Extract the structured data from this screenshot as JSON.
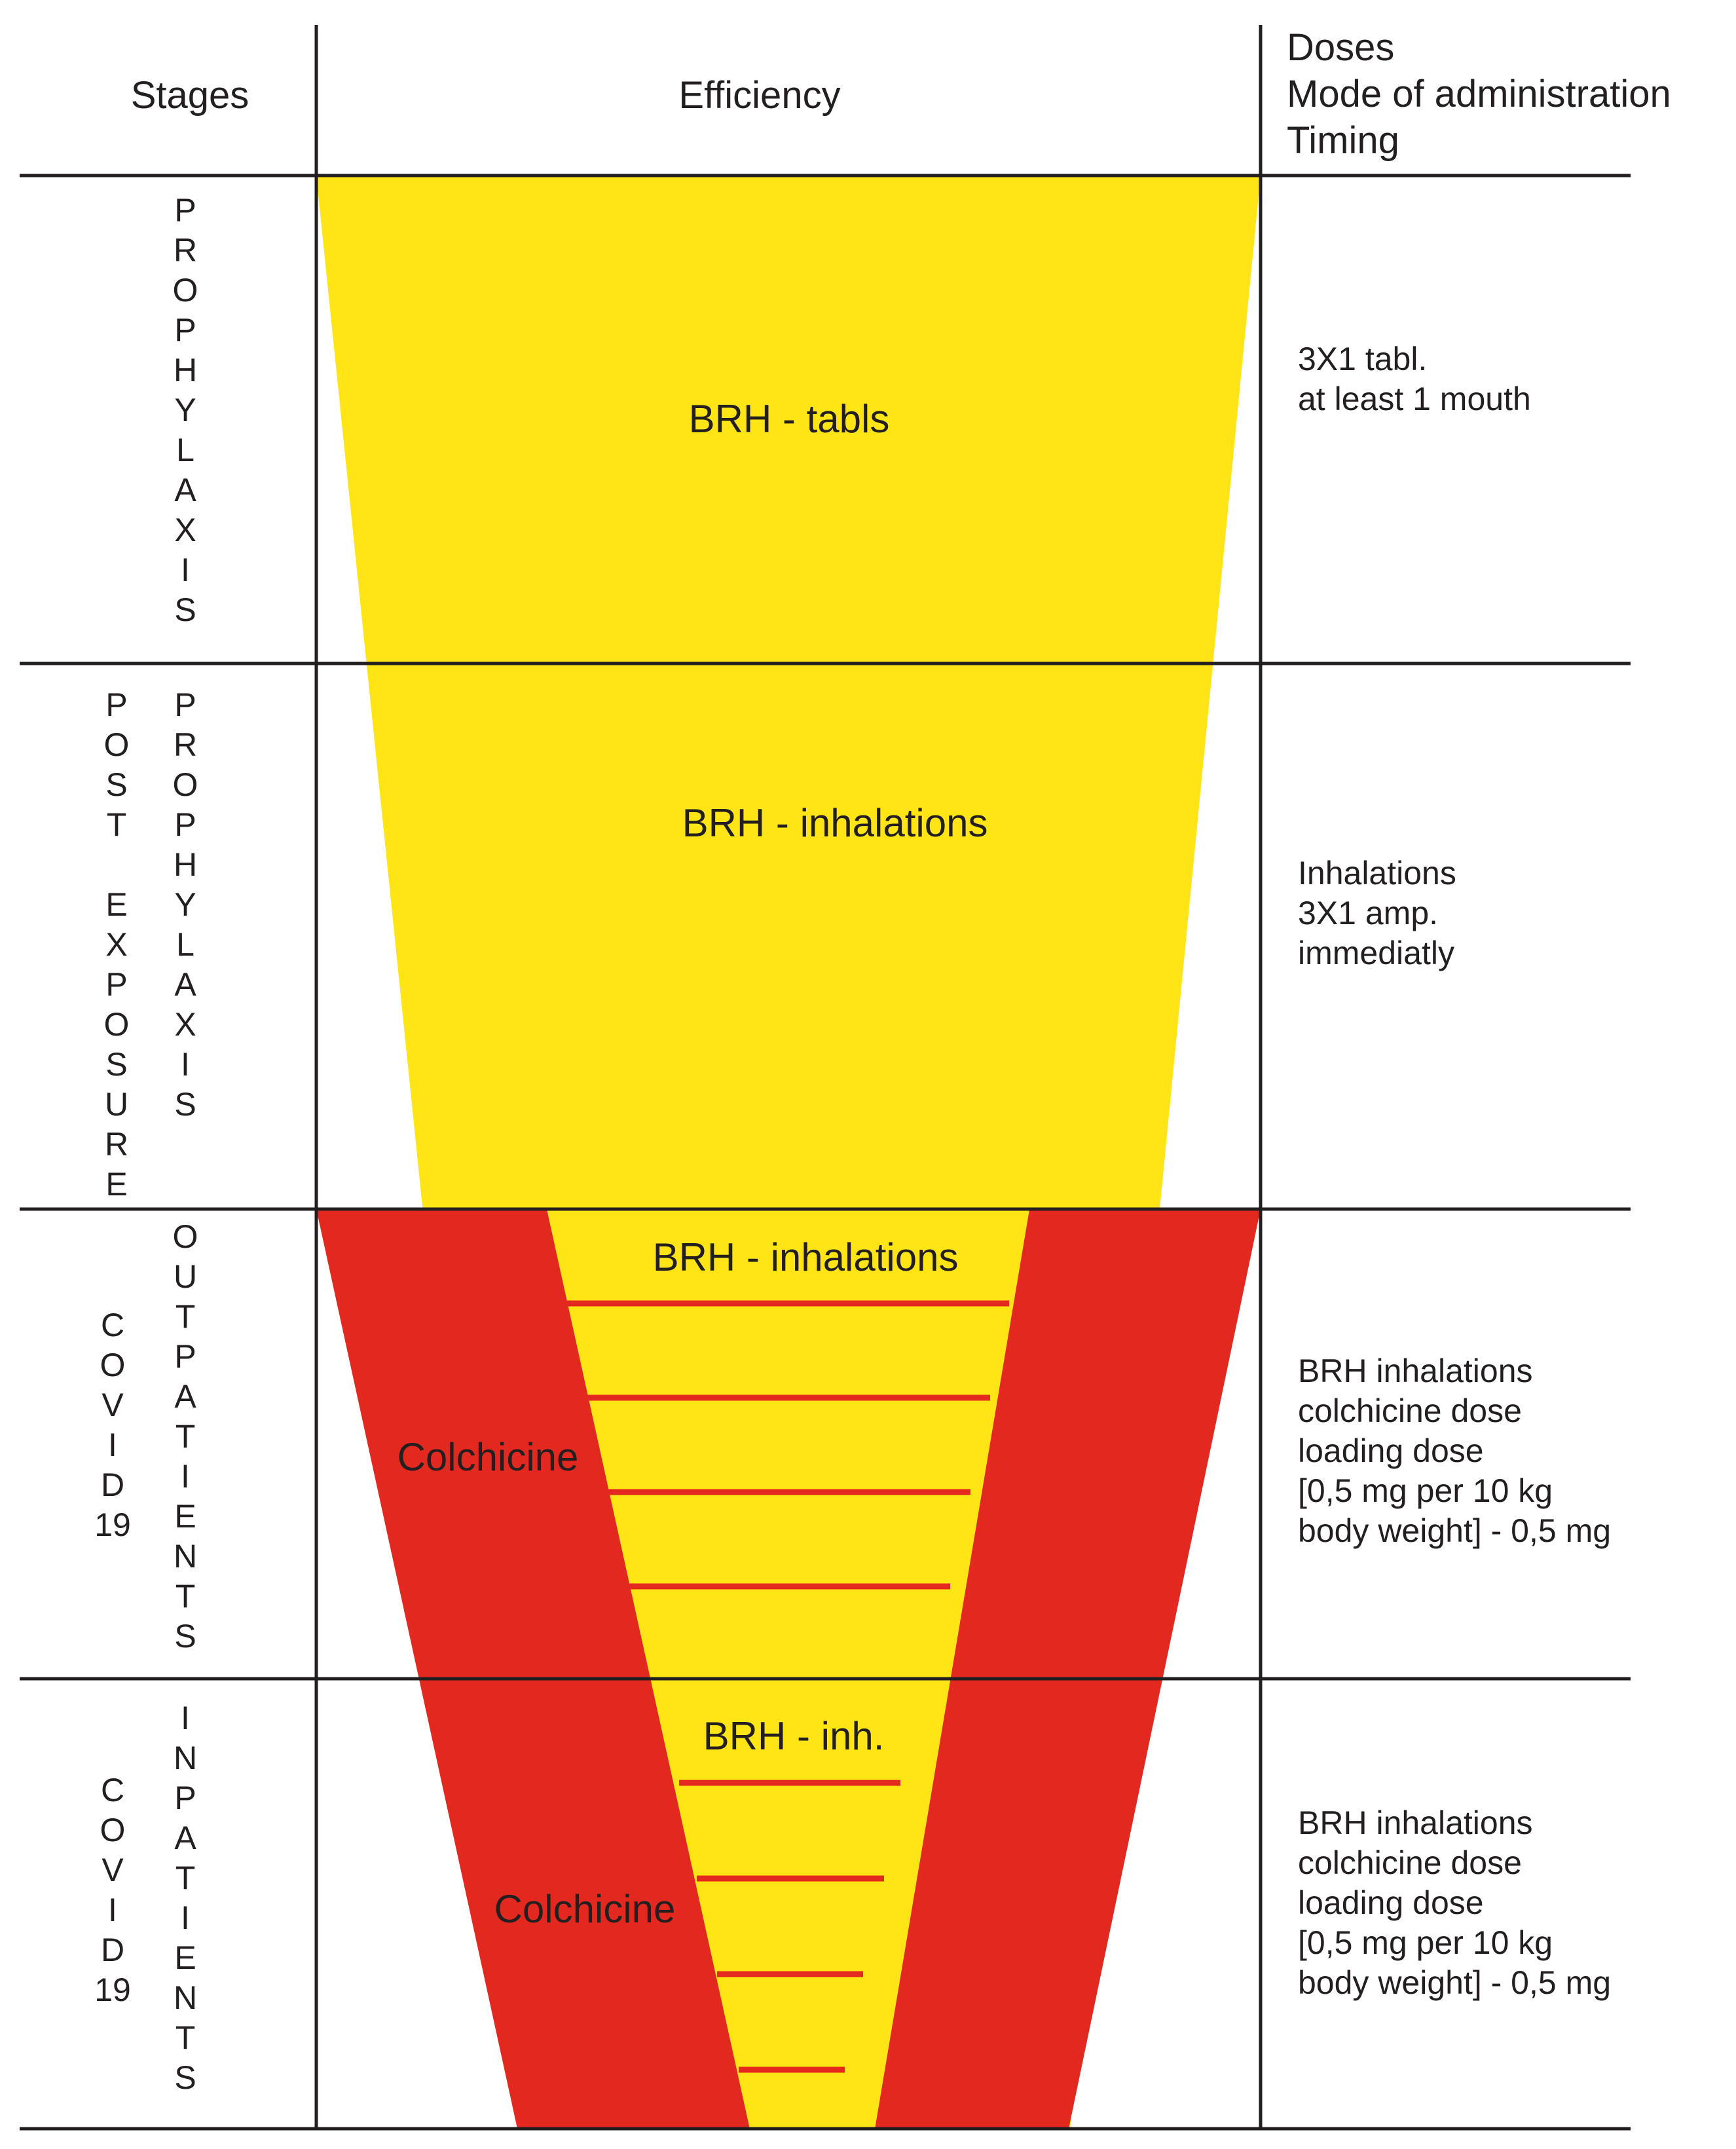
{
  "colors": {
    "yellow": "#ffe515",
    "red": "#e3291f",
    "line": "#231f20",
    "band_line": "#e3291f"
  },
  "header": {
    "stages": "Stages",
    "efficiency": "Efficiency",
    "doses_lines": [
      "Doses",
      "Mode of administration",
      "Timing"
    ]
  },
  "rows": [
    {
      "stage_columns": [
        [
          "P",
          "R",
          "O",
          "P",
          "H",
          "Y",
          "L",
          "A",
          "X",
          "I",
          "S"
        ]
      ],
      "yellow_label": "BRH - tabls",
      "doses_lines": [
        "3X1 tabl.",
        "at least 1 mouth"
      ]
    },
    {
      "stage_columns": [
        [
          "P",
          "O",
          "S",
          "T",
          "",
          "E",
          "X",
          "P",
          "O",
          "S",
          "U",
          "R",
          "E"
        ],
        [
          "P",
          "R",
          "O",
          "P",
          "H",
          "Y",
          "L",
          "A",
          "X",
          "I",
          "S"
        ]
      ],
      "yellow_label": "BRH - inhalations",
      "doses_lines": [
        "Inhalations",
        "3X1 amp.",
        "immediatly"
      ]
    },
    {
      "stage_columns": [
        [
          "C",
          "O",
          "V",
          "I",
          "D",
          "19"
        ],
        [
          "O",
          "U",
          "T",
          "P",
          "A",
          "T",
          "I",
          "E",
          "N",
          "T",
          "S"
        ]
      ],
      "yellow_label": "BRH - inhalations",
      "red_label": "Colchicine",
      "doses_lines": [
        "BRH inhalations",
        "colchicine dose",
        "loading dose",
        "[0,5 mg  per 10 kg",
        "body weight] - 0,5 mg"
      ]
    },
    {
      "stage_columns": [
        [
          "C",
          "O",
          "V",
          "I",
          "D",
          "19"
        ],
        [
          "I",
          "N",
          "P",
          "A",
          "T",
          "I",
          "E",
          "N",
          "T",
          "S"
        ]
      ],
      "yellow_label": "BRH - inh.",
      "red_label": "Colchicine",
      "doses_lines": [
        "BRH inhalations",
        "colchicine dose",
        "loading dose",
        "[0,5 mg  per 10 kg",
        "body weight] - 0,5 mg"
      ]
    }
  ]
}
